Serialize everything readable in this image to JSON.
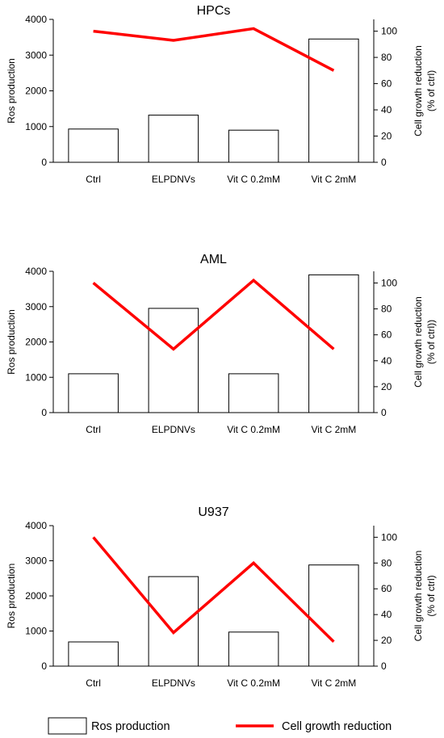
{
  "legend": {
    "bar_label": "Ros production",
    "line_label": "Cell growth reduction"
  },
  "chart_data": [
    {
      "type": "bar",
      "title": "HPCs",
      "categories": [
        "Ctrl",
        "ELPDNVs",
        "Vit C 0.2mM",
        "Vit C 2mM"
      ],
      "ylabel": "Ros production",
      "y2label": [
        "Cell growth reduction",
        "(% of ctrl)"
      ],
      "ylim": [
        0,
        4000
      ],
      "yticks": [
        0,
        1000,
        2000,
        3000,
        4000
      ],
      "y2lim": [
        0,
        109
      ],
      "y2ticks": [
        0,
        20,
        40,
        60,
        80,
        100
      ],
      "series": [
        {
          "name": "Ros production",
          "type": "bar",
          "axis": "left",
          "values": [
            930,
            1320,
            900,
            3450
          ],
          "color": "#ffffff",
          "stroke": "#000000"
        },
        {
          "name": "Cell growth reduction",
          "type": "line",
          "axis": "right",
          "values": [
            100,
            93,
            102,
            70
          ],
          "color": "#ff0000"
        }
      ]
    },
    {
      "type": "bar",
      "title": "AML",
      "categories": [
        "Ctrl",
        "ELPDNVs",
        "Vit C 0.2mM",
        "Vit C 2mM"
      ],
      "ylabel": "Ros production",
      "y2label": [
        "Cell growth reduction",
        "(% of ctrl))"
      ],
      "ylim": [
        0,
        4000
      ],
      "yticks": [
        0,
        1000,
        2000,
        3000,
        4000
      ],
      "y2lim": [
        0,
        109
      ],
      "y2ticks": [
        0,
        20,
        40,
        60,
        80,
        100
      ],
      "series": [
        {
          "name": "Ros production",
          "type": "bar",
          "axis": "left",
          "values": [
            1100,
            2950,
            1100,
            3900
          ],
          "color": "#ffffff",
          "stroke": "#000000"
        },
        {
          "name": "Cell growth reduction",
          "type": "line",
          "axis": "right",
          "values": [
            100,
            49,
            102,
            49
          ],
          "color": "#ff0000"
        }
      ]
    },
    {
      "type": "bar",
      "title": "U937",
      "categories": [
        "Ctrl",
        "ELPDNVs",
        "Vit C 0.2mM",
        "Vit C 2mM"
      ],
      "ylabel": "Ros production",
      "y2label": [
        "Cell growth reduction",
        "(% of ctrl)"
      ],
      "ylim": [
        0,
        4000
      ],
      "yticks": [
        0,
        1000,
        2000,
        3000,
        4000
      ],
      "y2lim": [
        0,
        109
      ],
      "y2ticks": [
        0,
        20,
        40,
        60,
        80,
        100
      ],
      "series": [
        {
          "name": "Ros production",
          "type": "bar",
          "axis": "left",
          "values": [
            690,
            2550,
            970,
            2880
          ],
          "color": "#ffffff",
          "stroke": "#000000"
        },
        {
          "name": "Cell growth reduction",
          "type": "line",
          "axis": "right",
          "values": [
            100,
            26,
            80,
            19
          ],
          "color": "#ff0000"
        }
      ]
    }
  ]
}
